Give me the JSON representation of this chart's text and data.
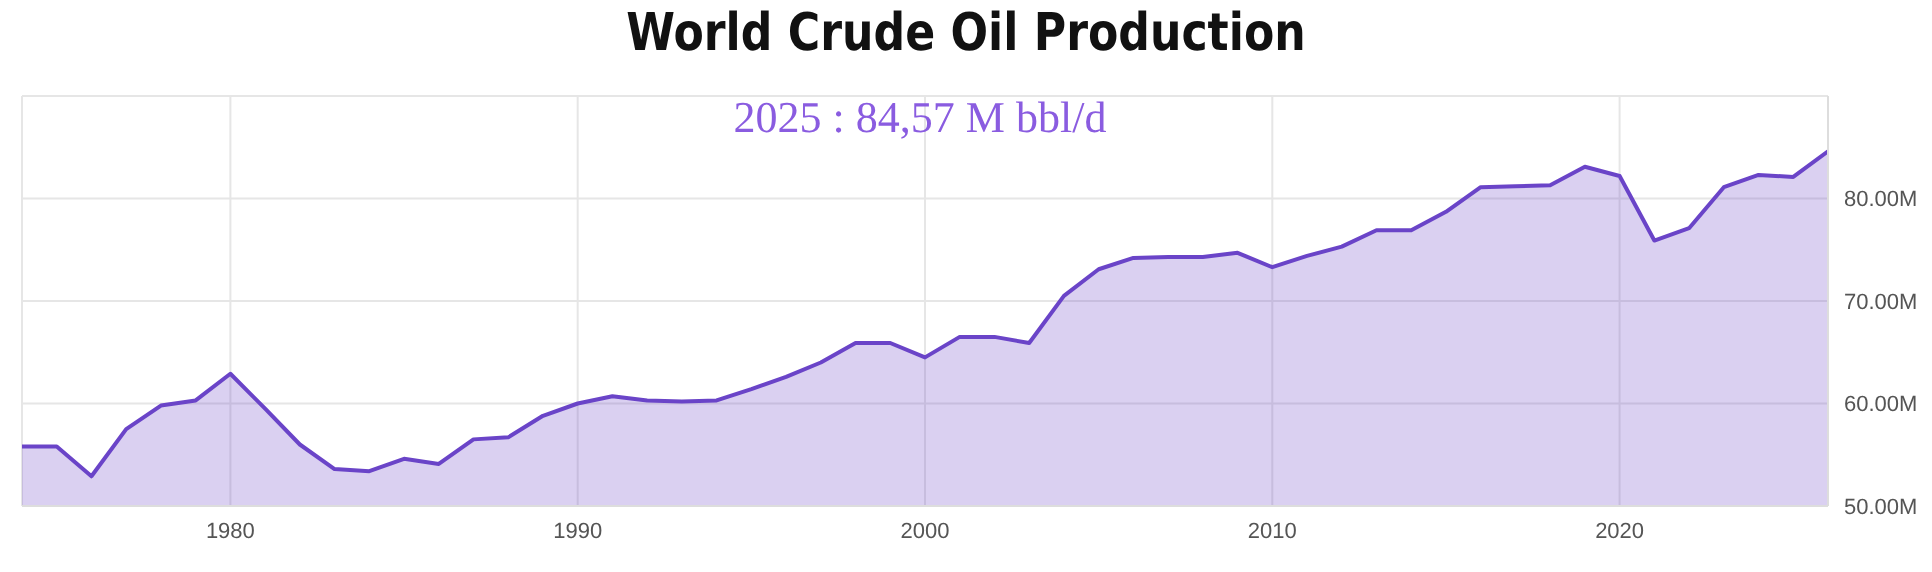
{
  "chart_data": {
    "type": "area",
    "title": "World Crude Oil Production",
    "annotations": [
      "2025 :  84,57 M bbl/d"
    ],
    "x": [
      1974,
      1975,
      1976,
      1977,
      1978,
      1979,
      1980,
      1981,
      1982,
      1983,
      1984,
      1985,
      1986,
      1987,
      1988,
      1989,
      1990,
      1991,
      1992,
      1993,
      1994,
      1995,
      1996,
      1997,
      1998,
      1999,
      2000,
      2001,
      2002,
      2003,
      2004,
      2005,
      2006,
      2007,
      2008,
      2009,
      2010,
      2011,
      2012,
      2013,
      2014,
      2015,
      2016,
      2017,
      2018,
      2019,
      2020,
      2021,
      2022,
      2023,
      2024,
      2025,
      2026
    ],
    "series": [
      {
        "color": "#6a44c8",
        "values": [
          55.8,
          55.8,
          52.9,
          57.5,
          59.8,
          60.3,
          62.9,
          59.5,
          56.0,
          53.6,
          53.4,
          54.6,
          54.1,
          56.5,
          56.7,
          58.8,
          60.0,
          60.7,
          60.3,
          60.2,
          60.3,
          61.4,
          62.6,
          64.0,
          65.9,
          65.9,
          64.5,
          66.5,
          66.5,
          65.9,
          70.5,
          73.1,
          74.2,
          74.3,
          74.3,
          74.7,
          73.3,
          74.4,
          75.3,
          76.9,
          76.9,
          78.7,
          81.1,
          81.2,
          81.3,
          83.1,
          82.2,
          75.9,
          77.1,
          81.1,
          82.3,
          82.1,
          84.6
        ]
      }
    ],
    "xlim": [
      1974,
      2026
    ],
    "xticks": [
      1980,
      1990,
      2000,
      2010,
      2020
    ],
    "ylim": [
      50,
      90
    ],
    "yticks": [
      {
        "value": 50,
        "label": "50.00M"
      },
      {
        "value": 60,
        "label": "60.00M"
      },
      {
        "value": 70,
        "label": "70.00M"
      },
      {
        "value": 80,
        "label": "80.00M"
      }
    ],
    "grid": true,
    "legend": false
  }
}
